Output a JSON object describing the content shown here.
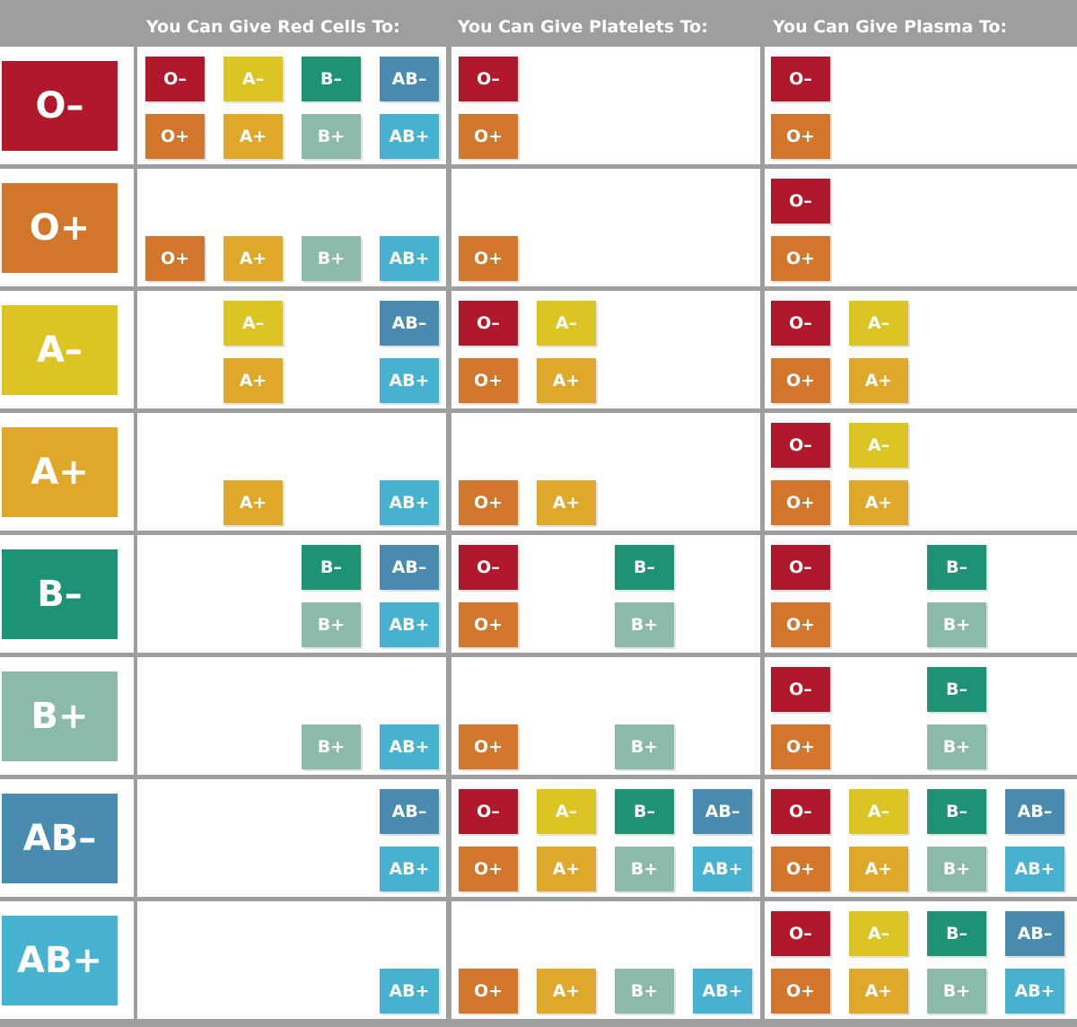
{
  "headers": {
    "red_cells": "You Can Give Red Cells To:",
    "platelets": "You Can Give Platelets To:",
    "plasma": "You Can Give Plasma To:"
  },
  "colors": {
    "O-": "#b0182c",
    "O+": "#d2762c",
    "A-": "#dcc424",
    "A+": "#e0a82a",
    "B-": "#1e9276",
    "B+": "#8bbaa8",
    "AB-": "#4a8cb0",
    "AB+": "#46b2d0"
  },
  "grid_order": [
    [
      "O–",
      "A–",
      "B–",
      "AB–"
    ],
    [
      "O+",
      "A+",
      "B+",
      "AB+"
    ]
  ],
  "rows": [
    {
      "donor": "O–",
      "red_cells": [
        "O–",
        "A–",
        "B–",
        "AB–",
        "O+",
        "A+",
        "B+",
        "AB+"
      ],
      "platelets": [
        "O–",
        "O+"
      ],
      "plasma": [
        "O–",
        "O+"
      ]
    },
    {
      "donor": "O+",
      "red_cells": [
        "O+",
        "A+",
        "B+",
        "AB+"
      ],
      "platelets": [
        "O+"
      ],
      "plasma": [
        "O–",
        "O+"
      ]
    },
    {
      "donor": "A–",
      "red_cells": [
        "A–",
        "AB–",
        "A+",
        "AB+"
      ],
      "platelets": [
        "O–",
        "A–",
        "O+",
        "A+"
      ],
      "plasma": [
        "O–",
        "A–",
        "O+",
        "A+"
      ]
    },
    {
      "donor": "A+",
      "red_cells": [
        "A+",
        "AB+"
      ],
      "platelets": [
        "O+",
        "A+"
      ],
      "plasma": [
        "O–",
        "A–",
        "O+",
        "A+"
      ]
    },
    {
      "donor": "B–",
      "red_cells": [
        "B–",
        "AB–",
        "B+",
        "AB+"
      ],
      "platelets": [
        "O–",
        "B–",
        "O+",
        "B+"
      ],
      "plasma": [
        "O–",
        "B–",
        "O+",
        "B+"
      ]
    },
    {
      "donor": "B+",
      "red_cells": [
        "B+",
        "AB+"
      ],
      "platelets": [
        "O+",
        "B+"
      ],
      "plasma": [
        "O–",
        "B–",
        "O+",
        "B+"
      ]
    },
    {
      "donor": "AB–",
      "red_cells": [
        "AB–",
        "AB+"
      ],
      "platelets": [
        "O–",
        "A–",
        "B–",
        "AB–",
        "O+",
        "A+",
        "B+",
        "AB+"
      ],
      "plasma": [
        "O–",
        "A–",
        "B–",
        "AB–",
        "O+",
        "A+",
        "B+",
        "AB+"
      ]
    },
    {
      "donor": "AB+",
      "red_cells": [
        "AB+"
      ],
      "platelets": [
        "O+",
        "A+",
        "B+",
        "AB+"
      ],
      "plasma": [
        "O–",
        "A–",
        "B–",
        "AB–",
        "O+",
        "A+",
        "B+",
        "AB+"
      ]
    }
  ]
}
